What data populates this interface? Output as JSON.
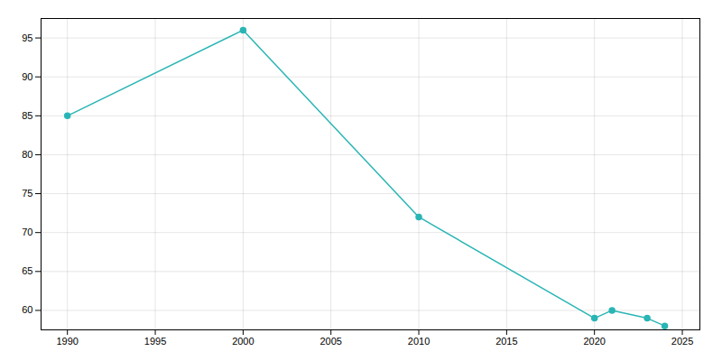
{
  "chart_data": {
    "type": "line",
    "x": [
      1990,
      2000,
      2010,
      2020,
      2021,
      2023,
      2024
    ],
    "values": [
      85,
      96,
      72,
      59,
      60,
      59,
      58
    ],
    "color": "#2ab5b5",
    "marker": "circle",
    "xlim": [
      1988.5,
      2026
    ],
    "ylim": [
      57.5,
      97.5
    ],
    "xticks": [
      1990,
      1995,
      2000,
      2005,
      2010,
      2015,
      2020,
      2025
    ],
    "yticks": [
      60,
      65,
      70,
      75,
      80,
      85,
      90,
      95
    ],
    "grid": true
  }
}
